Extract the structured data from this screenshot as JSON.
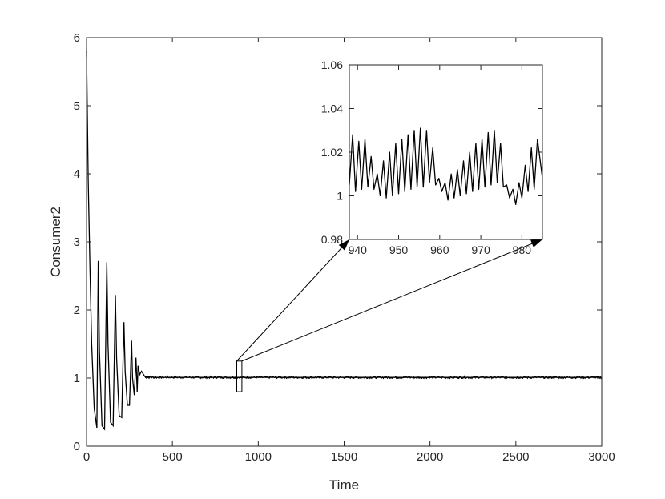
{
  "chart_data": [
    {
      "type": "line",
      "role": "main",
      "xlabel": "Time",
      "ylabel": "Consumer2",
      "xlim": [
        0,
        3000
      ],
      "ylim": [
        0,
        6
      ],
      "xticks": [
        0,
        500,
        1000,
        1500,
        2000,
        2500,
        3000
      ],
      "yticks": [
        0,
        1,
        2,
        3,
        4,
        5,
        6
      ],
      "xtick_labels": [
        "0",
        "500",
        "1000",
        "1500",
        "2000",
        "2500",
        "3000"
      ],
      "ytick_labels": [
        "0",
        "1",
        "2",
        "3",
        "4",
        "5",
        "6"
      ],
      "grid": false,
      "line_color": "#000000",
      "series": [
        {
          "x": [
            0,
            10,
            20,
            30,
            45,
            60,
            68,
            75,
            90,
            105,
            118,
            125,
            140,
            155,
            168,
            175,
            190,
            205,
            218,
            225,
            238,
            250,
            262,
            268,
            278,
            288,
            295,
            300,
            310,
            320,
            340,
            400,
            600,
            800,
            1000,
            1500,
            2000,
            2500,
            3000
          ],
          "y": [
            5.8,
            3.9,
            2.6,
            1.5,
            0.55,
            0.27,
            2.72,
            1.4,
            0.3,
            0.25,
            2.7,
            1.5,
            0.35,
            0.3,
            2.22,
            1.3,
            0.45,
            0.42,
            1.82,
            1.1,
            0.6,
            0.6,
            1.55,
            1.0,
            0.75,
            1.3,
            0.8,
            1.18,
            1.05,
            1.1,
            1.02,
            1.01,
            1.01,
            1.01,
            1.01,
            1.01,
            1.01,
            1.01,
            1.01
          ]
        }
      ],
      "zoom_box": {
        "x": [
          875,
          905
        ],
        "y": [
          0.8,
          1.25
        ]
      }
    },
    {
      "type": "line",
      "role": "inset",
      "xlim": [
        938,
        985
      ],
      "ylim": [
        0.98,
        1.06
      ],
      "xticks": [
        940,
        950,
        960,
        970,
        980
      ],
      "yticks": [
        0.98,
        1,
        1.02,
        1.04,
        1.06
      ],
      "xtick_labels": [
        "940",
        "950",
        "960",
        "970",
        "980"
      ],
      "ytick_labels": [
        "0.98",
        "1",
        "1.02",
        "1.04",
        "1.06"
      ],
      "grid": false,
      "line_color": "#000000",
      "series": [
        {
          "x": [
            938,
            938.8,
            939.5,
            940.3,
            941,
            941.8,
            942.5,
            943.3,
            944,
            944.8,
            945.5,
            946.3,
            947,
            947.8,
            948.5,
            949.3,
            950,
            950.8,
            951.5,
            952.3,
            953,
            953.8,
            954.5,
            955.3,
            956,
            956.8,
            957.5,
            958.3,
            959,
            959.8,
            960.5,
            961.3,
            962,
            962.8,
            963.5,
            964.3,
            965,
            965.8,
            966.5,
            967.3,
            968,
            968.8,
            969.5,
            970.3,
            971,
            971.8,
            972.5,
            973.3,
            974,
            974.8,
            975.5,
            976.3,
            977,
            977.8,
            978.5,
            979.3,
            980,
            980.8,
            981.5,
            982.3,
            983,
            983.8,
            985
          ],
          "y": [
            1.005,
            1.028,
            1.002,
            1.025,
            1.003,
            1.026,
            1.004,
            1.018,
            1.003,
            1.01,
            1.0,
            1.016,
            0.999,
            1.02,
            1.0,
            1.024,
            1.001,
            1.026,
            1.002,
            1.028,
            1.003,
            1.03,
            1.004,
            1.031,
            1.004,
            1.03,
            1.006,
            1.022,
            1.005,
            1.008,
            1.002,
            1.006,
            0.998,
            1.01,
            0.999,
            1.012,
            1.0,
            1.016,
            1.001,
            1.02,
            1.002,
            1.024,
            1.003,
            1.026,
            1.004,
            1.029,
            1.005,
            1.03,
            1.006,
            1.024,
            1.004,
            1.005,
            0.999,
            1.003,
            0.996,
            1.006,
            0.999,
            1.014,
            1.002,
            1.022,
            1.003,
            1.026,
            1.008
          ]
        }
      ]
    }
  ]
}
